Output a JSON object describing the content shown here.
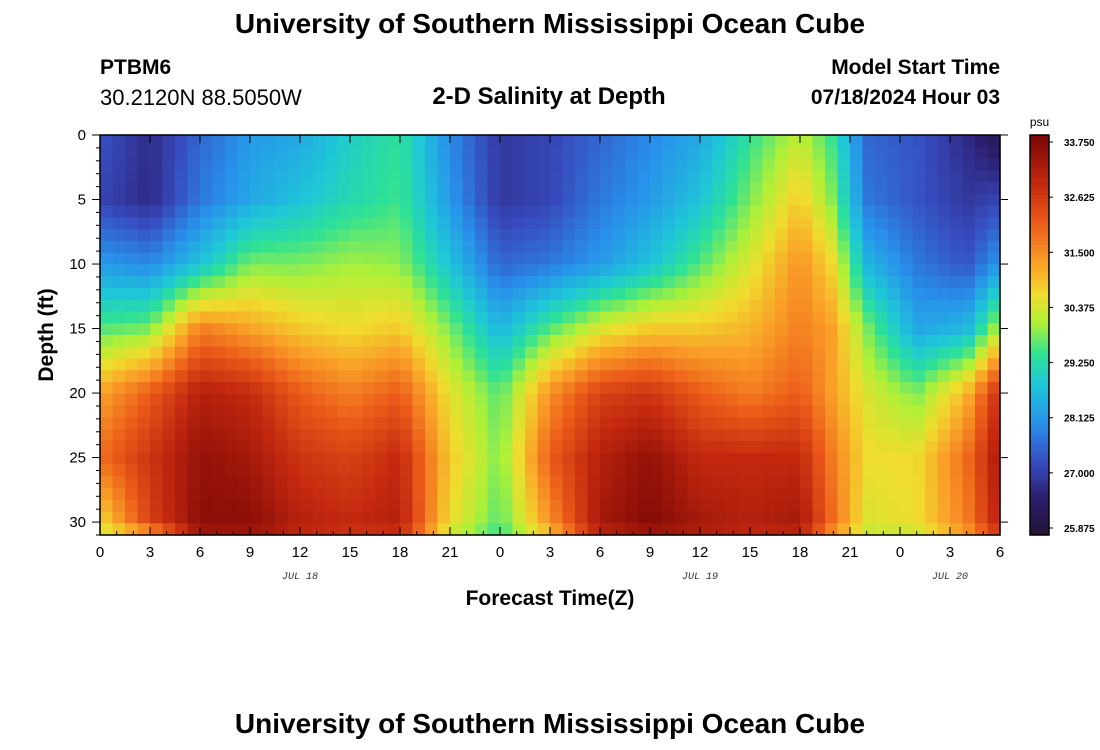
{
  "header": {
    "title": "University of Southern Mississippi Ocean Cube",
    "station": "PTBM6",
    "coords": "30.2120N  88.5050W",
    "subtitle": "2-D Salinity at Depth",
    "model_start_label": "Model Start Time",
    "model_start_value": "07/18/2024 Hour 03"
  },
  "footer": {
    "title": "University of Southern Mississippi Ocean Cube"
  },
  "chart_data": {
    "type": "heatmap",
    "title": "2-D Salinity at Depth",
    "xlabel": "Forecast Time(Z)",
    "ylabel": "Depth (ft)",
    "x_range_hours": [
      0,
      54
    ],
    "y_range": [
      0,
      31
    ],
    "x_ticks": [
      "0",
      "3",
      "6",
      "9",
      "12",
      "15",
      "18",
      "21",
      "0",
      "3",
      "6",
      "9",
      "12",
      "15",
      "18",
      "21",
      "0",
      "3",
      "6"
    ],
    "y_ticks": [
      "0",
      "5",
      "10",
      "15",
      "20",
      "25",
      "30"
    ],
    "date_labels": [
      {
        "label": "JUL 18",
        "hour": 12
      },
      {
        "label": "JUL 19",
        "hour": 36
      },
      {
        "label": "JUL 20",
        "hour": 51
      }
    ],
    "colorbar": {
      "unit": "psu",
      "min": 25.875,
      "max": 33.75,
      "tick_labels": [
        "33.750",
        "32.625",
        "31.500",
        "30.375",
        "29.250",
        "28.125",
        "27.000",
        "25.875"
      ]
    },
    "salinity_profiles_psu": {
      "depths_ft": [
        0,
        5,
        10,
        15,
        20,
        25,
        30,
        31
      ],
      "columns": [
        {
          "hour": 0,
          "values": [
            27.4,
            27.2,
            28.2,
            29.6,
            31.2,
            31.8,
            30.6,
            30.2
          ]
        },
        {
          "hour": 3,
          "values": [
            26.8,
            26.8,
            28.0,
            29.8,
            32.0,
            32.6,
            32.4,
            31.0
          ]
        },
        {
          "hour": 6,
          "values": [
            27.6,
            27.8,
            28.8,
            31.6,
            33.0,
            33.4,
            33.5,
            33.2
          ]
        },
        {
          "hour": 9,
          "values": [
            28.2,
            28.4,
            29.8,
            31.2,
            32.8,
            33.2,
            33.5,
            33.2
          ]
        },
        {
          "hour": 12,
          "values": [
            28.4,
            28.8,
            29.8,
            30.8,
            32.0,
            32.6,
            33.0,
            32.8
          ]
        },
        {
          "hour": 15,
          "values": [
            29.0,
            29.2,
            30.0,
            30.6,
            31.6,
            32.4,
            32.8,
            32.6
          ]
        },
        {
          "hour": 18,
          "values": [
            29.4,
            29.5,
            29.9,
            30.8,
            32.0,
            32.8,
            33.0,
            32.6
          ]
        },
        {
          "hour": 21,
          "values": [
            28.0,
            28.2,
            28.8,
            29.8,
            30.5,
            30.8,
            30.6,
            30.2
          ]
        },
        {
          "hour": 24,
          "values": [
            27.0,
            27.0,
            27.6,
            28.6,
            29.6,
            29.8,
            29.6,
            29.4
          ]
        },
        {
          "hour": 27,
          "values": [
            27.2,
            27.2,
            27.8,
            29.6,
            31.4,
            32.0,
            31.4,
            30.8
          ]
        },
        {
          "hour": 30,
          "values": [
            27.6,
            27.8,
            28.2,
            30.4,
            32.4,
            33.0,
            33.2,
            32.8
          ]
        },
        {
          "hour": 33,
          "values": [
            28.0,
            28.2,
            28.8,
            30.8,
            32.6,
            33.4,
            33.6,
            33.2
          ]
        },
        {
          "hour": 36,
          "values": [
            28.4,
            28.8,
            29.6,
            30.8,
            32.0,
            32.8,
            33.2,
            33.0
          ]
        },
        {
          "hour": 39,
          "values": [
            29.4,
            29.8,
            30.4,
            31.0,
            31.6,
            32.8,
            33.0,
            32.8
          ]
        },
        {
          "hour": 42,
          "values": [
            30.2,
            30.8,
            31.4,
            31.6,
            32.0,
            32.8,
            33.2,
            32.8
          ]
        },
        {
          "hour": 44,
          "values": [
            29.4,
            29.8,
            30.6,
            31.2,
            31.2,
            31.6,
            31.8,
            31.2
          ]
        },
        {
          "hour": 46,
          "values": [
            27.6,
            27.8,
            28.6,
            29.8,
            30.4,
            30.6,
            30.4,
            30.2
          ]
        },
        {
          "hour": 49,
          "values": [
            27.4,
            27.4,
            27.8,
            28.4,
            29.8,
            30.6,
            30.6,
            30.2
          ]
        },
        {
          "hour": 52,
          "values": [
            26.8,
            27.0,
            27.4,
            28.6,
            31.0,
            31.8,
            31.6,
            31.2
          ]
        },
        {
          "hour": 54,
          "values": [
            26.2,
            27.2,
            28.2,
            30.2,
            32.8,
            33.2,
            33.0,
            32.4
          ]
        }
      ]
    }
  }
}
